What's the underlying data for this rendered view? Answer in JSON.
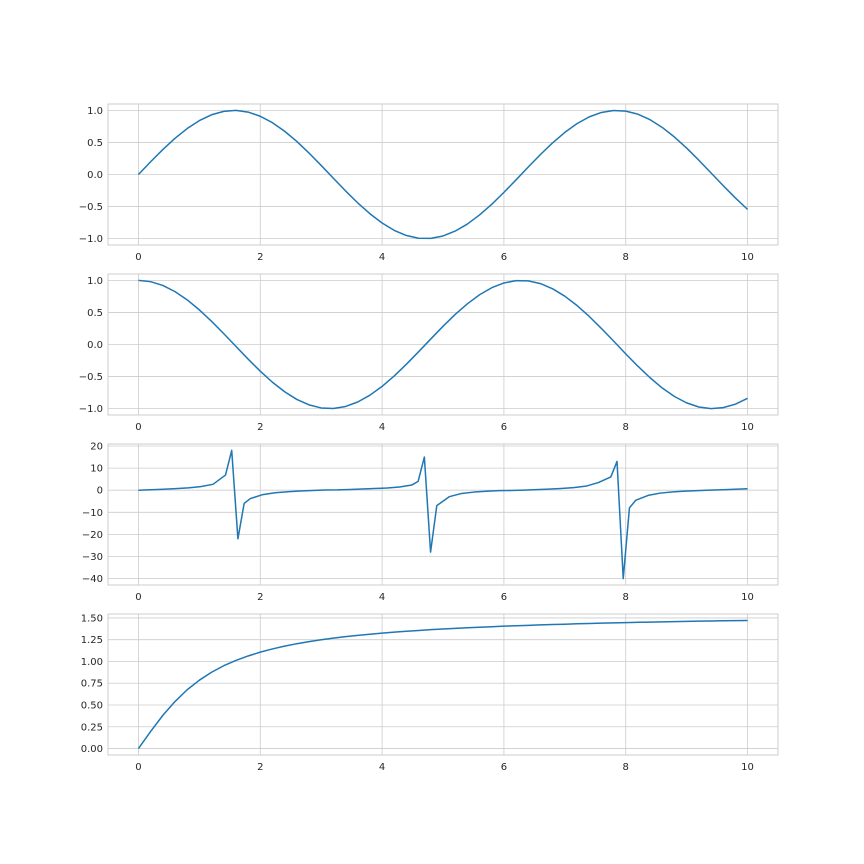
{
  "style": {
    "line_color": "#1f77b4",
    "grid_color": "#cccccc",
    "background": "#ffffff"
  },
  "chart_data": [
    {
      "type": "line",
      "title": "",
      "xlabel": "",
      "ylabel": "",
      "xlim": [
        -0.5,
        10.5
      ],
      "ylim": [
        -1.1,
        1.1
      ],
      "xticks": [
        0,
        2,
        4,
        6,
        8,
        10
      ],
      "xtick_labels": [
        "0",
        "2",
        "4",
        "6",
        "8",
        "10"
      ],
      "yticks": [
        -1.0,
        -0.5,
        0.0,
        0.5,
        1.0
      ],
      "ytick_labels": [
        "−1.0",
        "−0.5",
        "0.0",
        "0.5",
        "1.0"
      ],
      "grid": true,
      "series": [
        {
          "x": [
            0,
            0.2,
            0.4,
            0.6,
            0.8,
            1,
            1.2,
            1.4,
            1.6,
            1.8,
            2,
            2.2,
            2.4,
            2.6,
            2.8,
            3,
            3.2,
            3.4,
            3.6,
            3.8,
            4,
            4.2,
            4.4,
            4.6,
            4.8,
            5,
            5.2,
            5.4,
            5.6,
            5.8,
            6,
            6.2,
            6.4,
            6.6,
            6.8,
            7,
            7.2,
            7.4,
            7.6,
            7.8,
            8,
            8.2,
            8.4,
            8.6,
            8.8,
            9,
            9.2,
            9.4,
            9.6,
            9.8,
            10
          ],
          "y": [
            0,
            0.199,
            0.389,
            0.565,
            0.717,
            0.841,
            0.932,
            0.985,
            1,
            0.974,
            0.909,
            0.808,
            0.675,
            0.516,
            0.335,
            0.141,
            -0.058,
            -0.256,
            -0.443,
            -0.612,
            -0.757,
            -0.872,
            -0.952,
            -0.994,
            -0.996,
            -0.959,
            -0.883,
            -0.773,
            -0.631,
            -0.465,
            -0.279,
            -0.083,
            0.117,
            0.312,
            0.494,
            0.657,
            0.794,
            0.899,
            0.968,
            0.999,
            0.989,
            0.941,
            0.855,
            0.734,
            0.585,
            0.412,
            0.223,
            0.025,
            -0.174,
            -0.366,
            -0.544
          ]
        }
      ]
    },
    {
      "type": "line",
      "title": "",
      "xlabel": "",
      "ylabel": "",
      "xlim": [
        -0.5,
        10.5
      ],
      "ylim": [
        -1.1,
        1.1
      ],
      "xticks": [
        0,
        2,
        4,
        6,
        8,
        10
      ],
      "xtick_labels": [
        "0",
        "2",
        "4",
        "6",
        "8",
        "10"
      ],
      "yticks": [
        -1.0,
        -0.5,
        0.0,
        0.5,
        1.0
      ],
      "ytick_labels": [
        "−1.0",
        "−0.5",
        "0.0",
        "0.5",
        "1.0"
      ],
      "grid": true,
      "series": [
        {
          "x": [
            0,
            0.2,
            0.4,
            0.6,
            0.8,
            1,
            1.2,
            1.4,
            1.6,
            1.8,
            2,
            2.2,
            2.4,
            2.6,
            2.8,
            3,
            3.2,
            3.4,
            3.6,
            3.8,
            4,
            4.2,
            4.4,
            4.6,
            4.8,
            5,
            5.2,
            5.4,
            5.6,
            5.8,
            6,
            6.2,
            6.4,
            6.6,
            6.8,
            7,
            7.2,
            7.4,
            7.6,
            7.8,
            8,
            8.2,
            8.4,
            8.6,
            8.8,
            9,
            9.2,
            9.4,
            9.6,
            9.8,
            10
          ],
          "y": [
            1,
            0.98,
            0.921,
            0.825,
            0.697,
            0.54,
            0.362,
            0.17,
            -0.029,
            -0.227,
            -0.416,
            -0.589,
            -0.737,
            -0.857,
            -0.942,
            -0.99,
            -0.998,
            -0.967,
            -0.897,
            -0.791,
            -0.654,
            -0.49,
            -0.307,
            -0.112,
            0.087,
            0.284,
            0.469,
            0.635,
            0.776,
            0.886,
            0.96,
            0.997,
            0.993,
            0.95,
            0.869,
            0.754,
            0.608,
            0.439,
            0.251,
            0.054,
            -0.146,
            -0.339,
            -0.519,
            -0.679,
            -0.811,
            -0.911,
            -0.975,
            -1,
            -0.985,
            -0.931,
            -0.839
          ]
        }
      ]
    },
    {
      "type": "line",
      "title": "",
      "xlabel": "",
      "ylabel": "",
      "xlim": [
        -0.5,
        10.5
      ],
      "ylim": [
        -42.9,
        20.9
      ],
      "xticks": [
        0,
        2,
        4,
        6,
        8,
        10
      ],
      "xtick_labels": [
        "0",
        "2",
        "4",
        "6",
        "8",
        "10"
      ],
      "yticks": [
        -40,
        -30,
        -20,
        -10,
        0,
        10,
        20
      ],
      "ytick_labels": [
        "−40",
        "−30",
        "−20",
        "−10",
        "0",
        "10",
        "20"
      ],
      "grid": true,
      "series": [
        {
          "x": [
            0,
            0.204,
            0.408,
            0.612,
            0.816,
            1.02,
            1.224,
            1.429,
            1.531,
            1.633,
            1.735,
            1.837,
            2.041,
            2.245,
            2.449,
            2.653,
            2.857,
            3.061,
            3.265,
            3.469,
            3.673,
            3.878,
            4.082,
            4.286,
            4.49,
            4.592,
            4.694,
            4.796,
            4.898,
            5.102,
            5.306,
            5.51,
            5.714,
            5.918,
            6.122,
            6.327,
            6.531,
            6.735,
            6.939,
            7.143,
            7.347,
            7.551,
            7.755,
            7.857,
            7.959,
            8.061,
            8.163,
            8.367,
            8.571,
            8.776,
            8.98,
            9.184,
            9.388,
            9.592,
            9.796,
            10
          ],
          "y": [
            0,
            0.207,
            0.433,
            0.701,
            1.057,
            1.608,
            2.658,
            6.836,
            18.0,
            -22.0,
            -6.0,
            -3.8,
            -1.983,
            -1.179,
            -0.704,
            -0.39,
            -0.119,
            0.08,
            0.127,
            0.338,
            0.534,
            0.738,
            1.003,
            1.428,
            2.368,
            4.0,
            15.0,
            -28.0,
            -7.0,
            -2.95,
            -1.48,
            -0.847,
            -0.49,
            -0.19,
            -0.16,
            0.044,
            0.254,
            0.479,
            0.759,
            1.15,
            1.819,
            3.45,
            6.0,
            13.0,
            -40.0,
            -8.0,
            -4.6,
            -2.36,
            -1.3,
            -0.78,
            -0.45,
            -0.19,
            0.05,
            0.19,
            0.41,
            0.648
          ]
        }
      ]
    },
    {
      "type": "line",
      "title": "",
      "xlabel": "",
      "ylabel": "",
      "xlim": [
        -0.5,
        10.5
      ],
      "ylim": [
        -0.074,
        1.545
      ],
      "xticks": [
        0,
        2,
        4,
        6,
        8,
        10
      ],
      "xtick_labels": [
        "0",
        "2",
        "4",
        "6",
        "8",
        "10"
      ],
      "yticks": [
        0,
        0.25,
        0.5,
        0.75,
        1.0,
        1.25,
        1.5
      ],
      "ytick_labels": [
        "0.00",
        "0.25",
        "0.50",
        "0.75",
        "1.00",
        "1.25",
        "1.50"
      ],
      "grid": true,
      "series": [
        {
          "x": [
            0,
            0.2,
            0.4,
            0.6,
            0.8,
            1,
            1.2,
            1.4,
            1.6,
            1.8,
            2,
            2.2,
            2.4,
            2.6,
            2.8,
            3,
            3.2,
            3.4,
            3.6,
            3.8,
            4,
            4.2,
            4.4,
            4.6,
            4.8,
            5,
            5.2,
            5.4,
            5.6,
            5.8,
            6,
            6.2,
            6.4,
            6.6,
            6.8,
            7,
            7.2,
            7.4,
            7.6,
            7.8,
            8,
            8.2,
            8.4,
            8.6,
            8.8,
            9,
            9.2,
            9.4,
            9.6,
            9.8,
            10
          ],
          "y": [
            0,
            0.197,
            0.381,
            0.54,
            0.675,
            0.785,
            0.876,
            0.951,
            1.012,
            1.063,
            1.107,
            1.144,
            1.176,
            1.204,
            1.228,
            1.249,
            1.268,
            1.285,
            1.3,
            1.313,
            1.326,
            1.337,
            1.347,
            1.356,
            1.365,
            1.373,
            1.38,
            1.387,
            1.393,
            1.399,
            1.406,
            1.41,
            1.415,
            1.42,
            1.424,
            1.428,
            1.433,
            1.436,
            1.44,
            1.443,
            1.446,
            1.45,
            1.452,
            1.455,
            1.458,
            1.46,
            1.463,
            1.465,
            1.467,
            1.469,
            1.471
          ]
        }
      ]
    }
  ]
}
